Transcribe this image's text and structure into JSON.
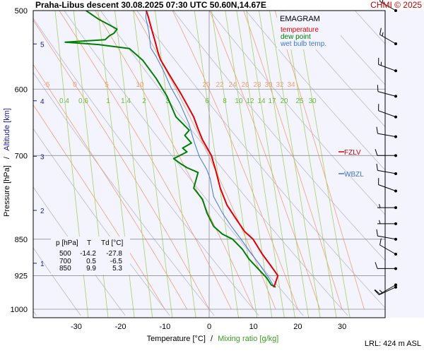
{
  "header": {
    "title": "Praha-Libus   descent   30.08.2025 07:30 UTC   50.60N,14.67E",
    "brand": "CHMI © 2025"
  },
  "legend": {
    "title": "EMAGRAM",
    "temperature": "temperature",
    "dewpoint": "dew point",
    "wetbulb": "wet bulb temp."
  },
  "axes": {
    "y_label_pressure": "Pressure [hPa]",
    "y_label_sep": "/",
    "y_label_altitude": "Altitude [km]",
    "x_label_temp": "Temperature [°C]",
    "x_label_sep": "/",
    "x_label_mixing": "Mixing ratio [g/kg]"
  },
  "footer": {
    "lrl": "LRL: 424 m ASL"
  },
  "levels": {
    "fzlv": "FZLV",
    "wbzl": "WBZL"
  },
  "table": {
    "headers": [
      "p [hPa]",
      "T",
      "Td [°C]"
    ],
    "rows": [
      [
        "500",
        "-14.2",
        "-27.8"
      ],
      [
        "700",
        "0.5",
        "-6.5"
      ],
      [
        "850",
        "9.9",
        "5.3"
      ]
    ]
  },
  "colors": {
    "temperature": "#e00000",
    "dewpoint": "#008000",
    "wetbulb": "#3c78d8",
    "plot_bg": "#f4f4ff",
    "dry_adiabat": "#b8b8d8",
    "moist_adiabat": "#f0a070",
    "mixing_ratio": "#a8d060",
    "isobar": "#909090",
    "brand": "#c00000",
    "altitude": "#1a1aa0"
  },
  "chart_data": {
    "type": "line",
    "xlabel": "Temperature [°C]",
    "ylabel": "Pressure [hPa]",
    "x_ticks": [
      -30,
      -20,
      -10,
      0,
      10,
      20,
      30
    ],
    "y_ticks": [
      500,
      600,
      700,
      850,
      925,
      1000
    ],
    "y_scale": "log",
    "altitude_ticks": [
      1,
      2,
      3,
      4,
      5
    ],
    "series": [
      {
        "name": "temperature",
        "points": [
          [
            -14.2,
            500
          ],
          [
            -13.7,
            508
          ],
          [
            -13.0,
            522
          ],
          [
            -12.2,
            537
          ],
          [
            -11.6,
            550
          ],
          [
            -11.0,
            560
          ],
          [
            -9.5,
            575
          ],
          [
            -8.0,
            590
          ],
          [
            -6.5,
            605
          ],
          [
            -5.0,
            622
          ],
          [
            -3.5,
            640
          ],
          [
            -2.5,
            658
          ],
          [
            -1.5,
            675
          ],
          [
            0.5,
            700
          ],
          [
            1.5,
            725
          ],
          [
            2.5,
            755
          ],
          [
            4.0,
            785
          ],
          [
            6.0,
            810
          ],
          [
            8.0,
            835
          ],
          [
            9.9,
            850
          ],
          [
            12.0,
            880
          ],
          [
            14.0,
            905
          ],
          [
            15.5,
            925
          ],
          [
            14.8,
            945
          ],
          [
            14.5,
            950
          ]
        ]
      },
      {
        "name": "dew point",
        "points": [
          [
            -27.8,
            500
          ],
          [
            -25.0,
            510
          ],
          [
            -22.5,
            517
          ],
          [
            -20.8,
            522
          ],
          [
            -21.5,
            527
          ],
          [
            -22.5,
            530
          ],
          [
            -23.5,
            535
          ],
          [
            -32.5,
            538
          ],
          [
            -25.0,
            541
          ],
          [
            -18.0,
            546
          ],
          [
            -15.0,
            561
          ],
          [
            -12.0,
            585
          ],
          [
            -9.5,
            610
          ],
          [
            -7.5,
            640
          ],
          [
            -4.5,
            660
          ],
          [
            -5.5,
            668
          ],
          [
            -4.0,
            680
          ],
          [
            -6.0,
            688
          ],
          [
            -5.0,
            694
          ],
          [
            -8.0,
            705
          ],
          [
            -6.5,
            713
          ],
          [
            -5.0,
            720
          ],
          [
            -2.5,
            728
          ],
          [
            -3.5,
            755
          ],
          [
            -1.5,
            775
          ],
          [
            -0.5,
            800
          ],
          [
            1.0,
            825
          ],
          [
            3.0,
            840
          ],
          [
            5.3,
            850
          ],
          [
            7.5,
            870
          ],
          [
            9.0,
            890
          ],
          [
            11.0,
            910
          ],
          [
            13.0,
            930
          ],
          [
            14.0,
            945
          ],
          [
            15.0,
            950
          ]
        ]
      },
      {
        "name": "wet bulb temp.",
        "points": [
          [
            -14.2,
            500
          ],
          [
            -14.3,
            508
          ],
          [
            -13.6,
            525
          ],
          [
            -13.2,
            545
          ],
          [
            -12.0,
            556
          ],
          [
            -10.3,
            575
          ],
          [
            -8.6,
            598
          ],
          [
            -6.6,
            620
          ],
          [
            -4.6,
            650
          ],
          [
            -3.3,
            680
          ],
          [
            -2.2,
            702
          ],
          [
            -0.6,
            722
          ],
          [
            0.2,
            738
          ],
          [
            1.0,
            770
          ],
          [
            3.0,
            800
          ],
          [
            5.0,
            825
          ],
          [
            7.2,
            850
          ],
          [
            9.3,
            876
          ],
          [
            11.4,
            902
          ],
          [
            13.5,
            930
          ],
          [
            14.4,
            945
          ],
          [
            14.8,
            950
          ]
        ]
      }
    ],
    "dry_adiabat_thetas_c": [
      -50,
      -40,
      -30,
      -20,
      -10,
      0,
      10,
      20,
      30,
      40,
      50,
      60,
      70,
      80,
      90,
      100,
      110,
      120
    ],
    "moist_adiabat_labels": [
      "-5",
      "0",
      "5",
      "10",
      "20",
      "22",
      "24",
      "26",
      "28",
      "30",
      "32",
      "34"
    ],
    "mixing_ratio_labels": [
      "0.4",
      "0.6",
      "1",
      "1.4",
      "2",
      "3",
      "6",
      "8",
      "10",
      "12",
      "14",
      "17",
      "20",
      "25",
      "30"
    ],
    "mixing_ratio_values": [
      0.4,
      0.6,
      1,
      1.4,
      2,
      3,
      6,
      8,
      10,
      12,
      14,
      17,
      20,
      25,
      30
    ],
    "wind_barbs": [
      {
        "p": 500,
        "dir": 300,
        "speed_kt": 20
      },
      {
        "p": 540,
        "dir": 300,
        "speed_kt": 15
      },
      {
        "p": 575,
        "dir": 290,
        "speed_kt": 15
      },
      {
        "p": 610,
        "dir": 285,
        "speed_kt": 10
      },
      {
        "p": 640,
        "dir": 290,
        "speed_kt": 10
      },
      {
        "p": 670,
        "dir": 280,
        "speed_kt": 10
      },
      {
        "p": 700,
        "dir": 270,
        "speed_kt": 10
      },
      {
        "p": 730,
        "dir": 280,
        "speed_kt": 10
      },
      {
        "p": 760,
        "dir": 290,
        "speed_kt": 10
      },
      {
        "p": 790,
        "dir": 270,
        "speed_kt": 5
      },
      {
        "p": 820,
        "dir": 270,
        "speed_kt": 5
      },
      {
        "p": 850,
        "dir": 280,
        "speed_kt": 10
      },
      {
        "p": 880,
        "dir": 300,
        "speed_kt": 10
      },
      {
        "p": 910,
        "dir": 270,
        "speed_kt": 10
      },
      {
        "p": 945,
        "dir": 240,
        "speed_kt": 15
      },
      {
        "p": 950,
        "dir": 245,
        "speed_kt": 10
      }
    ],
    "fzlv_hpa": 700,
    "wbzl_hpa": 728
  }
}
